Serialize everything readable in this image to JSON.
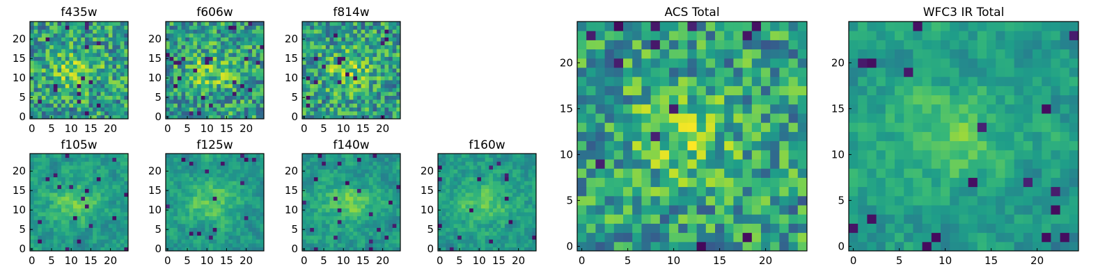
{
  "figure": {
    "colormap": "viridis",
    "colors": {
      "low": "#440154",
      "mid": "#21918c",
      "high": "#fde725",
      "frame": "#000000"
    }
  },
  "chart_data": [
    {
      "id": "f435w",
      "type": "heatmap",
      "title": "f435w",
      "grid_size": 25,
      "vmin": 0,
      "vmax": 1,
      "xticks": [
        "0",
        "5",
        "10",
        "15",
        "20"
      ],
      "yticks": [
        "0",
        "5",
        "10",
        "15",
        "20"
      ],
      "values": []
    },
    {
      "id": "f606w",
      "type": "heatmap",
      "title": "f606w",
      "grid_size": 25,
      "vmin": 0,
      "vmax": 1,
      "xticks": [
        "0",
        "5",
        "10",
        "15",
        "20"
      ],
      "yticks": [
        "0",
        "5",
        "10",
        "15",
        "20"
      ],
      "values": []
    },
    {
      "id": "f814w",
      "type": "heatmap",
      "title": "f814w",
      "grid_size": 25,
      "vmin": 0,
      "vmax": 1,
      "xticks": [
        "0",
        "5",
        "10",
        "15",
        "20"
      ],
      "yticks": [
        "0",
        "5",
        "10",
        "15",
        "20"
      ],
      "values": []
    },
    {
      "id": "f105w",
      "type": "heatmap",
      "title": "f105w",
      "grid_size": 25,
      "vmin": 0,
      "vmax": 1,
      "xticks": [
        "0",
        "5",
        "10",
        "15",
        "20"
      ],
      "yticks": [
        "0",
        "5",
        "10",
        "15",
        "20"
      ],
      "values": []
    },
    {
      "id": "f125w",
      "type": "heatmap",
      "title": "f125w",
      "grid_size": 25,
      "vmin": 0,
      "vmax": 1,
      "xticks": [
        "0",
        "5",
        "10",
        "15",
        "20"
      ],
      "yticks": [
        "0",
        "5",
        "10",
        "15",
        "20"
      ],
      "values": []
    },
    {
      "id": "f140w",
      "type": "heatmap",
      "title": "f140w",
      "grid_size": 25,
      "vmin": 0,
      "vmax": 1,
      "xticks": [
        "0",
        "5",
        "10",
        "15",
        "20"
      ],
      "yticks": [
        "0",
        "5",
        "10",
        "15",
        "20"
      ],
      "values": []
    },
    {
      "id": "f160w",
      "type": "heatmap",
      "title": "f160w",
      "grid_size": 25,
      "vmin": 0,
      "vmax": 1,
      "xticks": [
        "0",
        "5",
        "10",
        "15",
        "20"
      ],
      "yticks": [
        "0",
        "5",
        "10",
        "15",
        "20"
      ],
      "values": []
    },
    {
      "id": "acs_total",
      "type": "heatmap",
      "title": "ACS Total",
      "grid_size": 25,
      "vmin": 0,
      "vmax": 1,
      "xticks": [
        "0",
        "5",
        "10",
        "15",
        "20"
      ],
      "yticks": [
        "0",
        "5",
        "10",
        "15",
        "20"
      ],
      "values": []
    },
    {
      "id": "wfc3_total",
      "type": "heatmap",
      "title": "WFC3 IR Total",
      "grid_size": 25,
      "vmin": 0,
      "vmax": 1,
      "xticks": [
        "0",
        "5",
        "10",
        "15",
        "20"
      ],
      "yticks": [
        "0",
        "5",
        "10",
        "15",
        "20"
      ],
      "values": []
    }
  ]
}
